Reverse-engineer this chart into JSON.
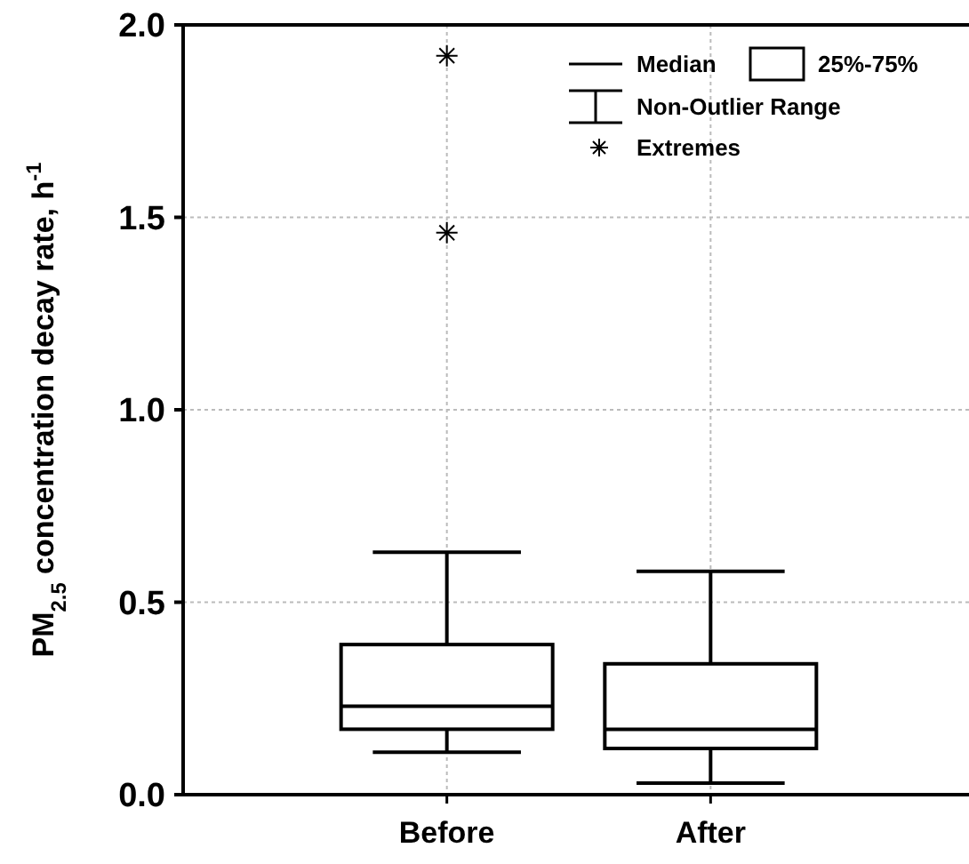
{
  "chart_data": {
    "type": "box",
    "ylabel": "PM$_{2.5}$ concentration decay rate, h$^{-1}$",
    "categories": [
      "Before",
      "After"
    ],
    "boxes": [
      {
        "low": 0.11,
        "q1": 0.17,
        "median": 0.23,
        "q3": 0.39,
        "high": 0.63,
        "outliers": [
          1.46,
          1.92
        ]
      },
      {
        "low": 0.03,
        "q1": 0.12,
        "median": 0.17,
        "q3": 0.34,
        "high": 0.58
      }
    ],
    "ylim": [
      0,
      2
    ],
    "yticks": [
      {
        "value": 0,
        "label": "0.0"
      },
      {
        "value": 0.5,
        "label": "0.5"
      },
      {
        "value": 1,
        "label": "1.0"
      },
      {
        "value": 1.5,
        "label": "1.5"
      },
      {
        "value": 2,
        "label": "2.0"
      }
    ],
    "grid": true,
    "marker": "star",
    "annotations": [
      "Median",
      "25%-75%",
      "Non-Outlier Range",
      "Extremes"
    ]
  }
}
